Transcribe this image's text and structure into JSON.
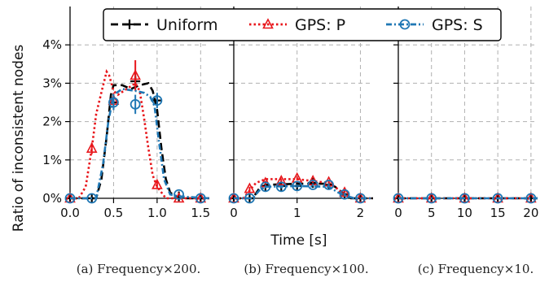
{
  "chart_data": [
    {
      "type": "line",
      "panel": "a",
      "caption": "(a) Frequency×200.",
      "xlabel": "",
      "ylabel": "Ratio of inconsistent nodes",
      "xlim": [
        0,
        1.6
      ],
      "ylim": [
        0,
        5
      ],
      "xticks": [
        0.0,
        0.5,
        1.0,
        1.5
      ],
      "xticklabels": [
        "0.0",
        "0.5",
        "1.0",
        "1.5"
      ],
      "yticks": [
        0,
        1,
        2,
        3,
        4
      ],
      "yticklabels": [
        "0%",
        "1%",
        "2%",
        "3%",
        "4%"
      ],
      "grid": true,
      "series": [
        {
          "name": "Uniform",
          "curve": [
            [
              0,
              0
            ],
            [
              0.3,
              0
            ],
            [
              0.36,
              0.5
            ],
            [
              0.42,
              1.6
            ],
            [
              0.47,
              2.7
            ],
            [
              0.5,
              2.95
            ],
            [
              0.6,
              2.95
            ],
            [
              0.7,
              2.85
            ],
            [
              0.8,
              2.95
            ],
            [
              0.9,
              3.0
            ],
            [
              0.95,
              2.8
            ],
            [
              1.0,
              2.3
            ],
            [
              1.05,
              1.3
            ],
            [
              1.1,
              0.5
            ],
            [
              1.15,
              0.15
            ],
            [
              1.25,
              0
            ],
            [
              1.6,
              0
            ]
          ],
          "points": [
            [
              0,
              0
            ],
            [
              0.25,
              0
            ],
            [
              0.5,
              2.5
            ],
            [
              0.75,
              3.05
            ],
            [
              1.0,
              2.55
            ],
            [
              1.25,
              0.05
            ],
            [
              1.5,
              0
            ]
          ],
          "err": [
            0,
            0,
            0.15,
            0.2,
            0.15,
            0,
            0
          ]
        },
        {
          "name": "GPS: P",
          "curve": [
            [
              0,
              0
            ],
            [
              0.1,
              0
            ],
            [
              0.18,
              0.3
            ],
            [
              0.25,
              1.3
            ],
            [
              0.3,
              2.2
            ],
            [
              0.37,
              2.85
            ],
            [
              0.42,
              3.3
            ],
            [
              0.45,
              3.2
            ],
            [
              0.5,
              2.8
            ],
            [
              0.55,
              2.7
            ],
            [
              0.65,
              2.85
            ],
            [
              0.75,
              3.0
            ],
            [
              0.8,
              2.8
            ],
            [
              0.85,
              2.1
            ],
            [
              0.9,
              1.3
            ],
            [
              0.95,
              0.6
            ],
            [
              1.0,
              0.3
            ],
            [
              1.1,
              0
            ],
            [
              1.6,
              0
            ]
          ],
          "points": [
            [
              0,
              0
            ],
            [
              0.25,
              1.3
            ],
            [
              0.5,
              2.55
            ],
            [
              0.75,
              3.2
            ],
            [
              1.0,
              0.35
            ],
            [
              1.25,
              0
            ],
            [
              1.5,
              0
            ]
          ],
          "err": [
            0,
            0.15,
            0.2,
            0.4,
            0.1,
            0,
            0
          ]
        },
        {
          "name": "GPS: S",
          "curve": [
            [
              0,
              0
            ],
            [
              0.3,
              0
            ],
            [
              0.38,
              0.9
            ],
            [
              0.44,
              2.0
            ],
            [
              0.5,
              2.7
            ],
            [
              0.6,
              2.85
            ],
            [
              0.75,
              2.8
            ],
            [
              0.85,
              2.75
            ],
            [
              0.92,
              2.65
            ],
            [
              0.97,
              2.4
            ],
            [
              1.02,
              1.5
            ],
            [
              1.08,
              0.5
            ],
            [
              1.15,
              0.1
            ],
            [
              1.25,
              0.05
            ],
            [
              1.6,
              0
            ]
          ],
          "points": [
            [
              0,
              0
            ],
            [
              0.25,
              0
            ],
            [
              0.5,
              2.5
            ],
            [
              0.75,
              2.45
            ],
            [
              1.0,
              2.55
            ],
            [
              1.25,
              0.1
            ],
            [
              1.5,
              0
            ]
          ],
          "err": [
            0,
            0,
            0.2,
            0.25,
            0.2,
            0,
            0
          ]
        }
      ]
    },
    {
      "type": "line",
      "panel": "b",
      "caption": "(b) Frequency×100.",
      "xlabel": "Time [s]",
      "xlim": [
        0,
        2.2
      ],
      "ylim": [
        0,
        5
      ],
      "xticks": [
        0,
        1,
        2
      ],
      "xticklabels": [
        "0",
        "1",
        "2"
      ],
      "yticks": [
        0,
        1,
        2,
        3,
        4
      ],
      "grid": true,
      "series": [
        {
          "name": "Uniform",
          "curve": [
            [
              0,
              0
            ],
            [
              0.3,
              0
            ],
            [
              0.4,
              0.25
            ],
            [
              0.5,
              0.35
            ],
            [
              1.0,
              0.38
            ],
            [
              1.5,
              0.38
            ],
            [
              1.6,
              0.3
            ],
            [
              1.75,
              0.1
            ],
            [
              1.85,
              0
            ],
            [
              2.2,
              0
            ]
          ],
          "points": [
            [
              0,
              0
            ],
            [
              0.25,
              0
            ],
            [
              0.5,
              0.32
            ],
            [
              0.75,
              0.32
            ],
            [
              1.0,
              0.32
            ],
            [
              1.25,
              0.4
            ],
            [
              1.5,
              0.35
            ],
            [
              1.75,
              0.1
            ],
            [
              2.0,
              0
            ]
          ],
          "err": [
            0,
            0,
            0.05,
            0.05,
            0.05,
            0.05,
            0.05,
            0.05,
            0
          ]
        },
        {
          "name": "GPS: P",
          "curve": [
            [
              0,
              0
            ],
            [
              0.15,
              0
            ],
            [
              0.25,
              0.2
            ],
            [
              0.35,
              0.4
            ],
            [
              0.5,
              0.5
            ],
            [
              1.0,
              0.5
            ],
            [
              1.5,
              0.4
            ],
            [
              1.6,
              0.3
            ],
            [
              1.7,
              0.15
            ],
            [
              1.8,
              0.05
            ],
            [
              1.9,
              0
            ],
            [
              2.2,
              0
            ]
          ],
          "points": [
            [
              0,
              0
            ],
            [
              0.25,
              0.25
            ],
            [
              0.5,
              0.4
            ],
            [
              0.75,
              0.45
            ],
            [
              1.0,
              0.52
            ],
            [
              1.25,
              0.45
            ],
            [
              1.5,
              0.42
            ],
            [
              1.75,
              0.15
            ],
            [
              2.0,
              0
            ]
          ],
          "err": [
            0,
            0.05,
            0.05,
            0.05,
            0.05,
            0.05,
            0.05,
            0.05,
            0
          ]
        },
        {
          "name": "GPS: S",
          "curve": [
            [
              0,
              0
            ],
            [
              0.3,
              0
            ],
            [
              0.4,
              0.2
            ],
            [
              0.5,
              0.3
            ],
            [
              1.0,
              0.32
            ],
            [
              1.5,
              0.3
            ],
            [
              1.65,
              0.15
            ],
            [
              1.8,
              0.05
            ],
            [
              1.9,
              0
            ],
            [
              2.2,
              0
            ]
          ],
          "points": [
            [
              0,
              0
            ],
            [
              0.25,
              0
            ],
            [
              0.5,
              0.3
            ],
            [
              0.75,
              0.3
            ],
            [
              1.0,
              0.32
            ],
            [
              1.25,
              0.35
            ],
            [
              1.5,
              0.35
            ],
            [
              1.75,
              0.1
            ],
            [
              2.0,
              0
            ]
          ],
          "err": [
            0,
            0,
            0.04,
            0.04,
            0.04,
            0.04,
            0.04,
            0.04,
            0
          ]
        }
      ]
    },
    {
      "type": "line",
      "panel": "c",
      "caption": "(c) Frequency×10.",
      "xlabel": "",
      "xlim": [
        0,
        21
      ],
      "ylim": [
        0,
        5
      ],
      "xticks": [
        0,
        5,
        10,
        15,
        20
      ],
      "xticklabels": [
        "0",
        "5",
        "10",
        "15",
        "20"
      ],
      "yticks": [
        0,
        1,
        2,
        3,
        4
      ],
      "grid": true,
      "series": [
        {
          "name": "Uniform",
          "curve": [
            [
              0,
              0
            ],
            [
              21,
              0
            ]
          ],
          "points": [
            [
              0,
              0
            ],
            [
              5,
              0
            ],
            [
              10,
              0
            ],
            [
              15,
              0
            ],
            [
              20,
              0
            ]
          ],
          "err": [
            0,
            0,
            0,
            0,
            0
          ]
        },
        {
          "name": "GPS: P",
          "curve": [
            [
              0,
              0
            ],
            [
              21,
              0
            ]
          ],
          "points": [
            [
              0,
              0
            ],
            [
              5,
              0
            ],
            [
              10,
              0
            ],
            [
              15,
              0
            ],
            [
              20,
              0
            ]
          ],
          "err": [
            0,
            0,
            0,
            0,
            0
          ]
        },
        {
          "name": "GPS: S",
          "curve": [
            [
              0,
              0
            ],
            [
              21,
              0
            ]
          ],
          "points": [
            [
              0,
              0
            ],
            [
              5,
              0
            ],
            [
              10,
              0
            ],
            [
              15,
              0
            ],
            [
              20,
              0
            ]
          ],
          "err": [
            0,
            0,
            0,
            0,
            0
          ]
        }
      ]
    }
  ],
  "legend": {
    "placement": "top-center",
    "entries": [
      {
        "label": "Uniform",
        "color": "#000000",
        "marker": "plus",
        "dash": "dashed"
      },
      {
        "label": "GPS: P",
        "color": "#e8161b",
        "marker": "triangle",
        "dash": "dotted"
      },
      {
        "label": "GPS: S",
        "color": "#1f77b4",
        "marker": "circle",
        "dash": "dashdot"
      }
    ]
  },
  "colors": {
    "uniform": "#000000",
    "gps_p": "#e8161b",
    "gps_s": "#1f77b4",
    "grid": "#b0b0b0"
  }
}
